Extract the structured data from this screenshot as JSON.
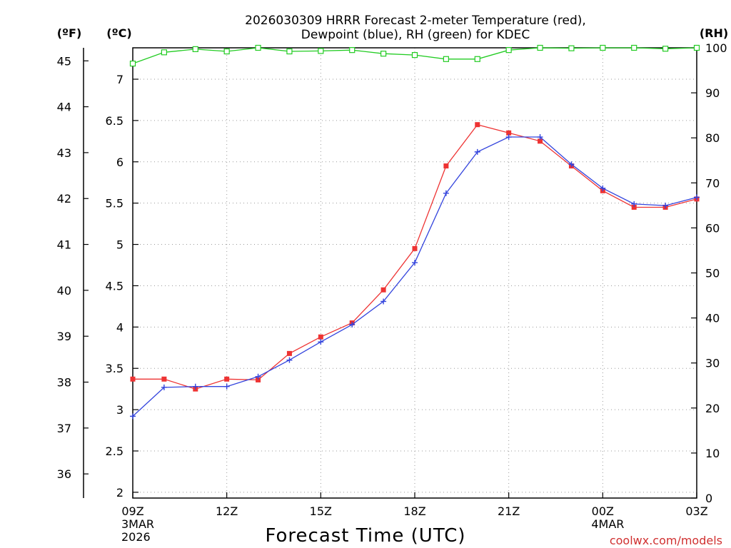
{
  "chart_data": {
    "type": "line",
    "title_line1": "2026030309 HRRR Forecast 2-meter Temperature (red),",
    "title_line2": "Dewpoint (blue), RH (green) for KDEC",
    "xlabel": "Forecast Time (UTC)",
    "credit": "coolwx.com/models",
    "unit_f": "(ºF)",
    "unit_c": "(ºC)",
    "unit_rh": "(RH)",
    "hours": [
      0,
      1,
      2,
      3,
      4,
      5,
      6,
      7,
      8,
      9,
      10,
      11,
      12,
      13,
      14,
      15,
      16,
      17,
      18
    ],
    "x_ticks": [
      {
        "hour": 0,
        "label": "09Z",
        "sub1": "3MAR",
        "sub2": "2026"
      },
      {
        "hour": 3,
        "label": "12Z",
        "sub1": "",
        "sub2": ""
      },
      {
        "hour": 6,
        "label": "15Z",
        "sub1": "",
        "sub2": ""
      },
      {
        "hour": 9,
        "label": "18Z",
        "sub1": "",
        "sub2": ""
      },
      {
        "hour": 12,
        "label": "21Z",
        "sub1": "",
        "sub2": ""
      },
      {
        "hour": 15,
        "label": "00Z",
        "sub1": "4MAR",
        "sub2": ""
      },
      {
        "hour": 18,
        "label": "03Z",
        "sub1": "",
        "sub2": ""
      }
    ],
    "celsius_axis": {
      "min": 1.93,
      "max": 7.38,
      "ticks": [
        "2",
        "2.5",
        "3",
        "3.5",
        "4",
        "4.5",
        "5",
        "5.5",
        "6",
        "6.5",
        "7"
      ]
    },
    "fahrenheit_ticks": [
      "36",
      "37",
      "38",
      "39",
      "40",
      "41",
      "42",
      "43",
      "44",
      "45"
    ],
    "rh_axis": {
      "min": 0,
      "max": 100,
      "ticks": [
        "0",
        "10",
        "20",
        "30",
        "40",
        "50",
        "60",
        "70",
        "80",
        "90",
        "100"
      ]
    },
    "series": [
      {
        "name": "Temperature",
        "color": "#ee3333",
        "marker": "square",
        "values": [
          3.37,
          3.37,
          3.25,
          3.37,
          3.36,
          3.68,
          3.88,
          4.05,
          4.45,
          4.95,
          5.95,
          6.45,
          6.35,
          6.25,
          5.95,
          5.65,
          5.45,
          5.45,
          5.55
        ]
      },
      {
        "name": "Dewpoint",
        "color": "#3344dd",
        "marker": "plus",
        "values": [
          2.92,
          3.27,
          3.28,
          3.28,
          3.4,
          3.6,
          3.82,
          4.03,
          4.31,
          4.78,
          5.62,
          6.12,
          6.3,
          6.3,
          5.97,
          5.68,
          5.49,
          5.47,
          5.57
        ]
      },
      {
        "name": "RH",
        "color": "#22cc22",
        "marker": "open-square",
        "values": [
          96.5,
          99.0,
          99.7,
          99.2,
          100,
          99.2,
          99.3,
          99.5,
          98.7,
          98.4,
          97.5,
          97.5,
          99.5,
          100,
          99.9,
          100,
          100,
          99.8,
          100
        ]
      }
    ]
  }
}
